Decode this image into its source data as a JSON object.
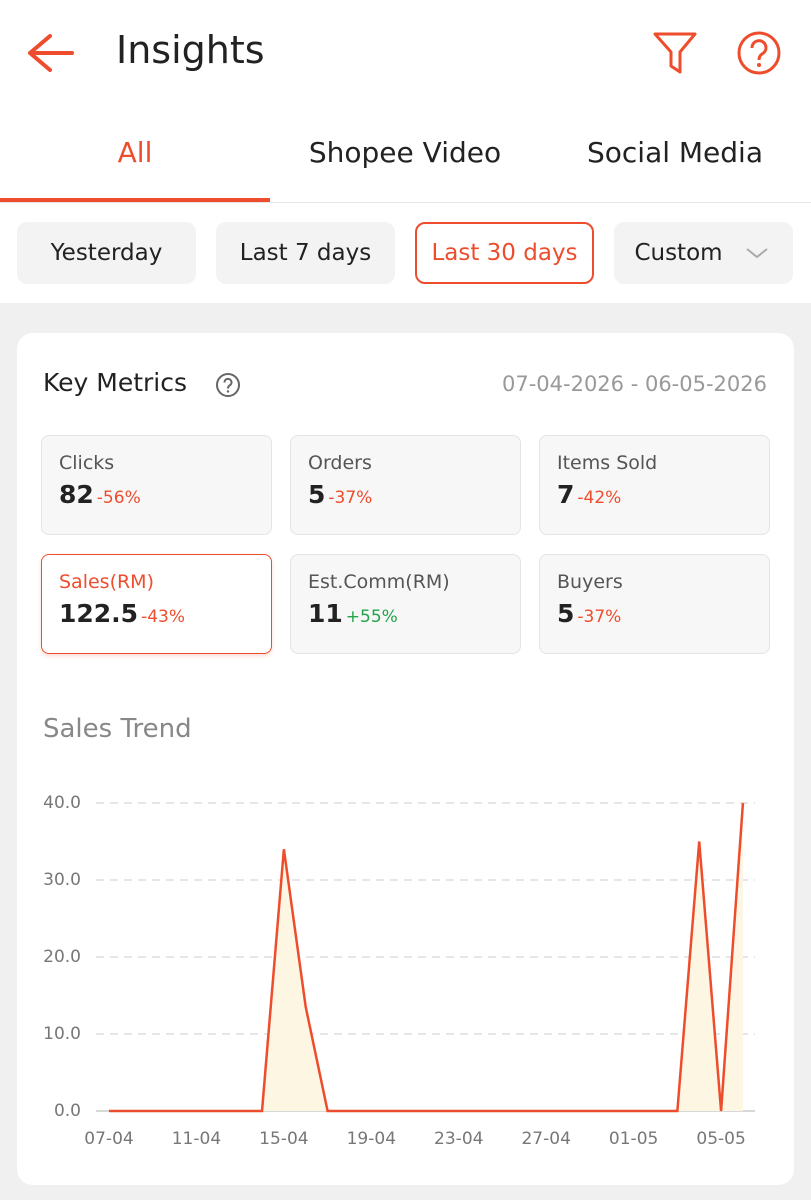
{
  "header": {
    "title": "Insights"
  },
  "tabs": [
    "All",
    "Shopee Video",
    "Social Media"
  ],
  "date_filters": [
    "Yesterday",
    "Last 7 days",
    "Last 30 days",
    "Custom"
  ],
  "key_metrics": {
    "title": "Key Metrics",
    "date_range": "07-04-2026 - 06-05-2026",
    "metrics": [
      {
        "label": "Clicks",
        "value": "82",
        "change": "-56%",
        "change_color": "#ee4d2d"
      },
      {
        "label": "Orders",
        "value": "5",
        "change": "-37%",
        "change_color": "#ee4d2d"
      },
      {
        "label": "Items Sold",
        "value": "7",
        "change": "-42%",
        "change_color": "#ee4d2d"
      },
      {
        "label": "Sales(RM)",
        "value": "122.5",
        "change": "-43%",
        "change_color": "#ee4d2d"
      },
      {
        "label": "Est.Comm(RM)",
        "value": "11",
        "change": "+55%",
        "change_color": "#22a447"
      },
      {
        "label": "Buyers",
        "value": "5",
        "change": "-37%",
        "change_color": "#ee4d2d"
      }
    ]
  },
  "chart_data": {
    "type": "line",
    "title": "Sales Trend",
    "color": "#ee4d2d",
    "area_color": "#fdf6e3",
    "categories": [
      "07-04",
      null,
      null,
      null,
      "11-04",
      null,
      null,
      null,
      "15-04",
      null,
      null,
      null,
      "19-04",
      null,
      null,
      null,
      "23-04",
      null,
      null,
      null,
      "27-04",
      null,
      null,
      null,
      "01-05",
      null,
      null,
      null,
      "05-05",
      null
    ],
    "values": [
      0,
      0,
      0,
      0,
      0,
      0,
      0,
      0,
      34,
      13.5,
      0,
      0,
      0,
      0,
      0,
      0,
      0,
      0,
      0,
      0,
      0,
      0,
      0,
      0,
      0,
      0,
      0,
      35,
      0,
      40
    ],
    "ylim": [
      0,
      40
    ],
    "yticks": [
      {
        "value": 0,
        "label": "0.0"
      },
      {
        "value": 10,
        "label": "10.0"
      },
      {
        "value": 20,
        "label": "20.0"
      },
      {
        "value": 30,
        "label": "30.0"
      },
      {
        "value": 40,
        "label": "40.0"
      }
    ],
    "grid": true
  }
}
